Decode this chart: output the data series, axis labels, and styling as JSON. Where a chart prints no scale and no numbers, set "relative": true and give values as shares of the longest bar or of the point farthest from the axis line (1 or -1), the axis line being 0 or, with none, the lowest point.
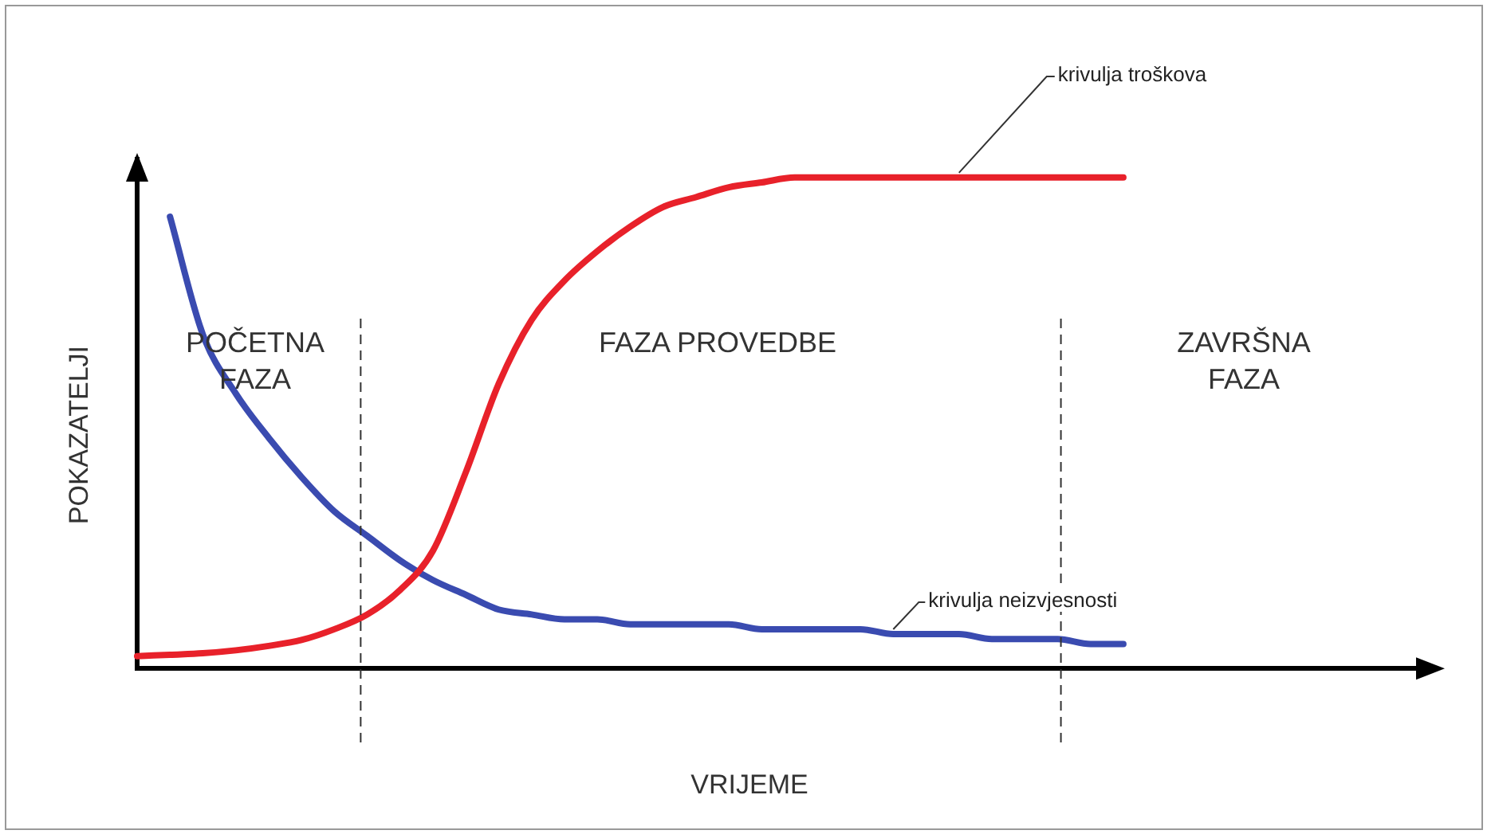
{
  "chart_data": {
    "type": "line",
    "relative": true,
    "xlabel": "VRIJEME",
    "ylabel": "POKAZATELJI",
    "categories": [
      null,
      null,
      null,
      null,
      null,
      null,
      null,
      null,
      null,
      null,
      null,
      null,
      null,
      null,
      null,
      null,
      null,
      null,
      null,
      null,
      null,
      null,
      null,
      null,
      null,
      null,
      null,
      null,
      null,
      null,
      null,
      null,
      null,
      null,
      null,
      null,
      null,
      null,
      null,
      null
    ],
    "series": [
      {
        "name": "krivulja troškova",
        "color": "#e8212a",
        "values": [
          0.025,
          0.028,
          0.031,
          0.037,
          0.046,
          0.058,
          0.08,
          0.11,
          0.16,
          0.24,
          0.4,
          0.58,
          0.71,
          0.79,
          0.85,
          0.9,
          0.94,
          0.96,
          0.98,
          0.99,
          1,
          1,
          1,
          1,
          1,
          1,
          1,
          1,
          1,
          1,
          1,
          null,
          null,
          null,
          null,
          null,
          null,
          null,
          null,
          null
        ]
      },
      {
        "name": "krivulja neizvjesnosti",
        "color": "#3a4bb0",
        "values": [
          null,
          0.92,
          0.68,
          0.56,
          0.47,
          0.39,
          0.32,
          0.27,
          0.22,
          0.18,
          0.15,
          0.12,
          0.11,
          0.1,
          0.1,
          0.09,
          0.09,
          0.09,
          0.09,
          0.08,
          0.08,
          0.08,
          0.08,
          0.07,
          0.07,
          0.07,
          0.06,
          0.06,
          0.06,
          0.05,
          0.05,
          null,
          null,
          null,
          null,
          null,
          null,
          null,
          null,
          null
        ]
      }
    ],
    "annotations": [
      "POČETNA FAZA",
      "FAZA PROVEDBE",
      "ZAVRŠNA FAZA"
    ],
    "legend": false,
    "grid": false,
    "marker": "none",
    "line_style": "solid"
  }
}
